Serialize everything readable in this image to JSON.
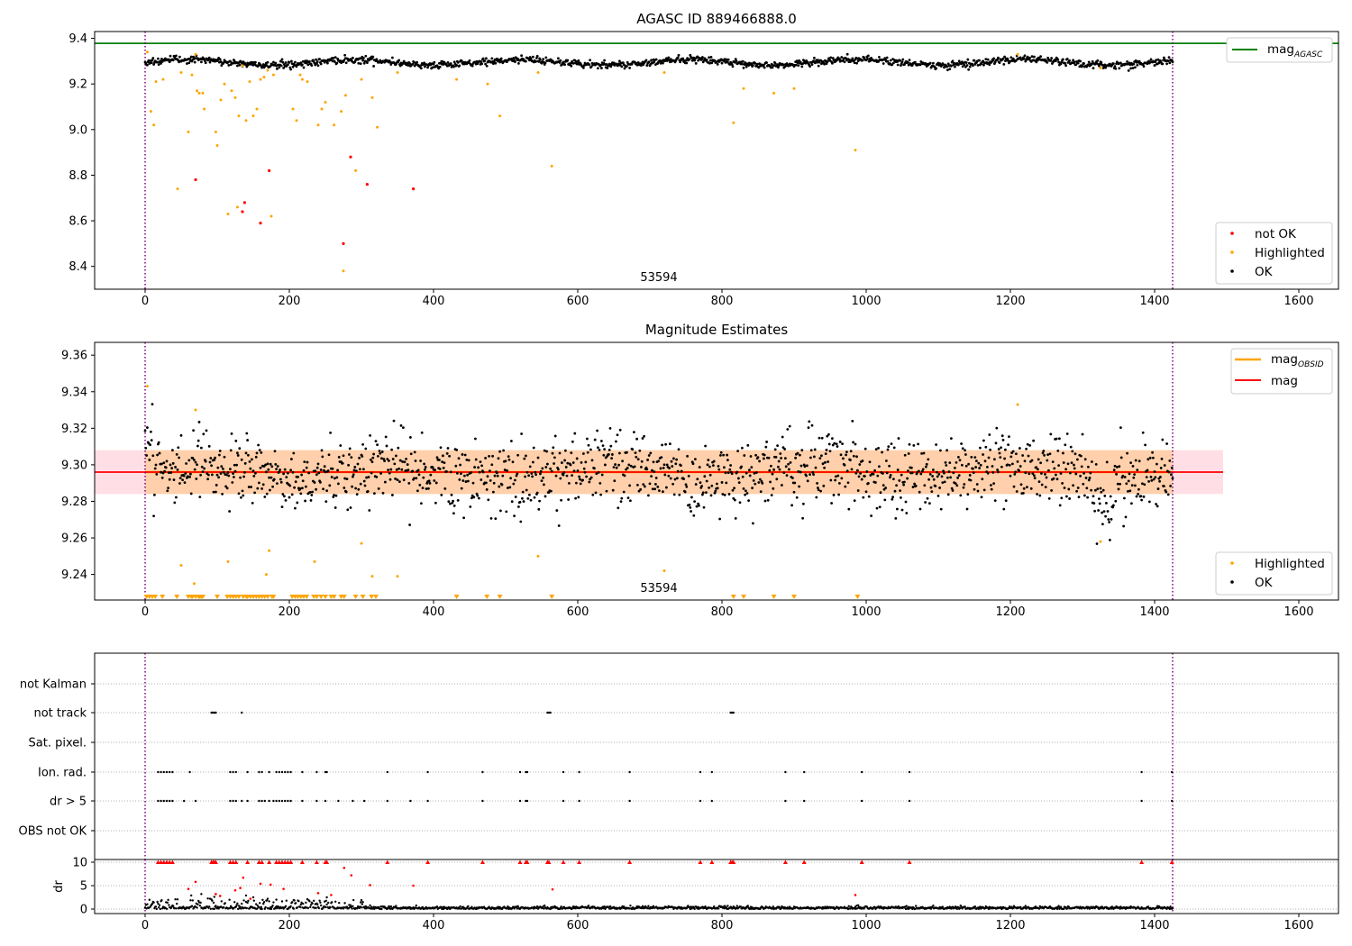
{
  "colors": {
    "ok": "#000000",
    "not_ok": "#ff0000",
    "highlighted": "#ffa500",
    "agasc_line": "#008000",
    "mag_line": "#ff0000",
    "mag_obsid_line": "#ffa500",
    "band_fill_mag": "#ffc0cb",
    "band_fill_obsid": "#ffa500",
    "obs_boundary": "#800080"
  },
  "chart_data": [
    {
      "type": "scatter",
      "title": "AGASC ID 889466888.0",
      "xlabel": "",
      "ylabel": "",
      "xlim": [
        -70,
        1655
      ],
      "ylim": [
        8.3,
        9.43
      ],
      "x_ticks": [
        "0",
        "200",
        "400",
        "600",
        "800",
        "1000",
        "1200",
        "1400",
        "1600"
      ],
      "y_ticks": [
        "8.4",
        "8.6",
        "8.8",
        "9.0",
        "9.2",
        "9.4"
      ],
      "agasc_mag": 9.378,
      "obs_boundaries": [
        0,
        1425
      ],
      "obsid_label": "53594",
      "legend_lines": [
        {
          "name": "mag",
          "sub": "AGASC",
          "position": "upper-right"
        }
      ],
      "legend_points": [
        "not OK",
        "Highlighted",
        "OK"
      ],
      "ok_baseline": 9.295,
      "highlighted_points": [
        [
          3,
          9.34
        ],
        [
          8,
          9.08
        ],
        [
          12,
          9.02
        ],
        [
          15,
          9.21
        ],
        [
          25,
          9.22
        ],
        [
          45,
          8.74
        ],
        [
          50,
          9.25
        ],
        [
          60,
          8.99
        ],
        [
          65,
          9.24
        ],
        [
          70,
          9.33
        ],
        [
          72,
          9.17
        ],
        [
          75,
          9.16
        ],
        [
          80,
          9.16
        ],
        [
          82,
          9.09
        ],
        [
          98,
          8.99
        ],
        [
          100,
          8.93
        ],
        [
          105,
          9.13
        ],
        [
          110,
          9.2
        ],
        [
          115,
          8.63
        ],
        [
          120,
          9.17
        ],
        [
          125,
          9.14
        ],
        [
          128,
          8.66
        ],
        [
          130,
          9.06
        ],
        [
          135,
          9.28
        ],
        [
          140,
          9.04
        ],
        [
          145,
          9.21
        ],
        [
          150,
          9.06
        ],
        [
          155,
          9.09
        ],
        [
          160,
          9.22
        ],
        [
          165,
          9.23
        ],
        [
          170,
          9.26
        ],
        [
          175,
          8.62
        ],
        [
          178,
          9.24
        ],
        [
          205,
          9.09
        ],
        [
          210,
          9.04
        ],
        [
          215,
          9.24
        ],
        [
          218,
          9.22
        ],
        [
          225,
          9.21
        ],
        [
          240,
          9.02
        ],
        [
          245,
          9.09
        ],
        [
          250,
          9.12
        ],
        [
          262,
          9.02
        ],
        [
          272,
          9.08
        ],
        [
          275,
          8.38
        ],
        [
          278,
          9.15
        ],
        [
          292,
          8.82
        ],
        [
          300,
          9.22
        ],
        [
          315,
          9.14
        ],
        [
          322,
          9.01
        ],
        [
          350,
          9.25
        ],
        [
          432,
          9.22
        ],
        [
          475,
          9.2
        ],
        [
          492,
          9.06
        ],
        [
          545,
          9.25
        ],
        [
          564,
          8.84
        ],
        [
          720,
          9.25
        ],
        [
          816,
          9.03
        ],
        [
          830,
          9.18
        ],
        [
          872,
          9.16
        ],
        [
          900,
          9.18
        ],
        [
          985,
          8.91
        ],
        [
          1210,
          9.33
        ],
        [
          1325,
          9.27
        ]
      ],
      "not_ok_points": [
        [
          70,
          8.78
        ],
        [
          135,
          8.64
        ],
        [
          138,
          8.68
        ],
        [
          160,
          8.59
        ],
        [
          172,
          8.82
        ],
        [
          275,
          8.5
        ],
        [
          285,
          8.88
        ],
        [
          308,
          8.76
        ],
        [
          372,
          8.74
        ]
      ]
    },
    {
      "type": "scatter",
      "title": "Magnitude Estimates",
      "xlabel": "",
      "ylabel": "",
      "xlim": [
        -70,
        1655
      ],
      "ylim": [
        9.226,
        9.367
      ],
      "x_ticks": [
        "0",
        "200",
        "400",
        "600",
        "800",
        "1000",
        "1200",
        "1400",
        "1600"
      ],
      "y_ticks": [
        "9.24",
        "9.26",
        "9.28",
        "9.30",
        "9.32",
        "9.34",
        "9.36"
      ],
      "mag": 9.296,
      "mag_band": [
        9.284,
        9.308
      ],
      "mag_obsid": 9.296,
      "mag_obsid_band": [
        9.284,
        9.308
      ],
      "obsid_label": "53594",
      "legend_lines": [
        {
          "name": "mag",
          "sub": "OBSID"
        },
        {
          "name": "mag",
          "sub": ""
        }
      ],
      "legend_points": [
        "Highlighted",
        "OK"
      ],
      "highlighted_points": [
        [
          3,
          9.343
        ],
        [
          70,
          9.33
        ],
        [
          50,
          9.245
        ],
        [
          68,
          9.235
        ],
        [
          115,
          9.247
        ],
        [
          168,
          9.24
        ],
        [
          172,
          9.253
        ],
        [
          235,
          9.247
        ],
        [
          300,
          9.257
        ],
        [
          315,
          9.239
        ],
        [
          350,
          9.239
        ],
        [
          545,
          9.25
        ],
        [
          720,
          9.242
        ],
        [
          1210,
          9.333
        ],
        [
          1325,
          9.258
        ]
      ],
      "below_range_markers_x": [
        2,
        6,
        10,
        14,
        24,
        44,
        60,
        64,
        66,
        70,
        74,
        76,
        78,
        80,
        100,
        114,
        118,
        122,
        126,
        130,
        136,
        140,
        142,
        146,
        150,
        154,
        158,
        162,
        166,
        170,
        176,
        178,
        204,
        208,
        212,
        216,
        220,
        224,
        234,
        238,
        244,
        250,
        258,
        262,
        272,
        276,
        292,
        302,
        314,
        320,
        432,
        474,
        492,
        564,
        816,
        830,
        872,
        900,
        988
      ]
    },
    {
      "type": "scatter",
      "title": "",
      "xlabel": "",
      "ylabel": "",
      "xlim": [
        -70,
        1655
      ],
      "x_ticks": [
        "0",
        "200",
        "400",
        "600",
        "800",
        "1000",
        "1200",
        "1400",
        "1600"
      ],
      "categories": [
        "not Kalman",
        "not track",
        "Sat. pixel.",
        "Ion. rad.",
        "dr > 5",
        "OBS not OK"
      ],
      "flag_points": {
        "not track": [
          92,
          94,
          96,
          98,
          134,
          558,
          560,
          562,
          812,
          814,
          816
        ],
        "Ion. rad.": [
          18,
          22,
          26,
          30,
          34,
          38,
          62,
          118,
          122,
          126,
          142,
          158,
          162,
          172,
          182,
          186,
          190,
          194,
          198,
          202,
          218,
          238,
          250,
          252,
          336,
          392,
          468,
          520,
          528,
          530,
          580,
          602,
          672,
          770,
          786,
          888,
          914,
          994,
          1060,
          1382,
          1424
        ],
        "dr > 5": [
          18,
          22,
          26,
          30,
          34,
          38,
          54,
          70,
          118,
          122,
          126,
          134,
          142,
          158,
          162,
          166,
          172,
          178,
          182,
          186,
          190,
          194,
          198,
          202,
          218,
          238,
          250,
          268,
          288,
          304,
          336,
          368,
          392,
          468,
          520,
          528,
          530,
          580,
          602,
          672,
          770,
          786,
          888,
          914,
          994,
          1060,
          1382,
          1424
        ]
      },
      "obs_boundaries": [
        0,
        1425
      ]
    },
    {
      "type": "scatter",
      "title": "",
      "xlabel": "",
      "ylabel": "dr",
      "xlim": [
        -70,
        1655
      ],
      "ylim": [
        -0.3,
        10.5
      ],
      "x_ticks": [
        "0",
        "200",
        "400",
        "600",
        "800",
        "1000",
        "1200",
        "1400",
        "1600"
      ],
      "y_ticks": [
        "0",
        "5",
        "10"
      ],
      "capped_red_points_x": [
        18,
        22,
        26,
        30,
        34,
        38,
        92,
        94,
        96,
        98,
        118,
        122,
        126,
        142,
        158,
        162,
        172,
        182,
        186,
        190,
        194,
        198,
        202,
        218,
        238,
        250,
        252,
        336,
        392,
        468,
        520,
        528,
        530,
        558,
        560,
        580,
        602,
        672,
        770,
        786,
        812,
        814,
        816,
        888,
        914,
        994,
        1060,
        1382,
        1424
      ],
      "red_points": [
        [
          60,
          4.3
        ],
        [
          70,
          5.8
        ],
        [
          98,
          3.2
        ],
        [
          104,
          2.8
        ],
        [
          125,
          4.0
        ],
        [
          132,
          4.5
        ],
        [
          136,
          6.7
        ],
        [
          146,
          2.2
        ],
        [
          160,
          5.4
        ],
        [
          174,
          5.2
        ],
        [
          192,
          4.3
        ],
        [
          240,
          3.4
        ],
        [
          258,
          3.0
        ],
        [
          276,
          8.8
        ],
        [
          286,
          7.2
        ],
        [
          312,
          5.1
        ],
        [
          372,
          5.0
        ],
        [
          565,
          4.2
        ],
        [
          985,
          3.0
        ]
      ],
      "black_points": [
        [
          64,
          2.9
        ],
        [
          78,
          3.2
        ],
        [
          96,
          2.6
        ],
        [
          140,
          2.9
        ],
        [
          150,
          2.5
        ],
        [
          170,
          2.2
        ],
        [
          182,
          2.0
        ],
        [
          206,
          1.9
        ],
        [
          252,
          2.5
        ],
        [
          300,
          1.9
        ]
      ]
    }
  ]
}
